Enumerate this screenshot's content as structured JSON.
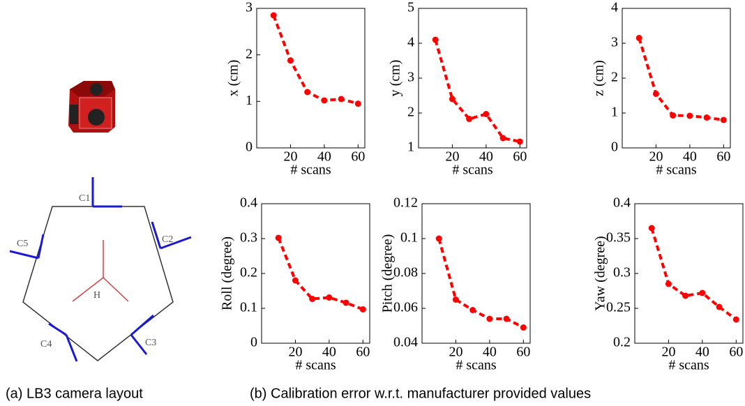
{
  "diagram": {
    "labels": [
      "C1",
      "C2",
      "C3",
      "C4",
      "C5",
      "H"
    ]
  },
  "captions": [
    "(a)  LB3 camera layout",
    "(b)  Calibration error w.r.t. manufacturer provided values"
  ],
  "chart_data": [
    {
      "type": "line",
      "ylabel": "x (cm)",
      "xlabel": "# scans",
      "x": [
        10,
        20,
        30,
        40,
        50,
        60
      ],
      "values": [
        2.85,
        1.88,
        1.2,
        1.02,
        1.05,
        0.95
      ],
      "color": "#ff0000",
      "xlim": [
        0,
        64
      ],
      "xticks": [
        20,
        40,
        60
      ],
      "ylim": [
        0,
        3
      ],
      "yticks": [
        0,
        1,
        2,
        3
      ]
    },
    {
      "type": "line",
      "ylabel": "y (cm)",
      "xlabel": "# scans",
      "x": [
        10,
        20,
        30,
        40,
        50,
        60
      ],
      "values": [
        4.1,
        2.4,
        1.83,
        1.97,
        1.28,
        1.18
      ],
      "color": "#ff0000",
      "xlim": [
        0,
        64
      ],
      "xticks": [
        20,
        40,
        60
      ],
      "ylim": [
        1,
        5
      ],
      "yticks": [
        1,
        2,
        3,
        4,
        5
      ]
    },
    {
      "type": "line",
      "ylabel": "z (cm)",
      "xlabel": "# scans",
      "x": [
        10,
        20,
        30,
        40,
        50,
        60
      ],
      "values": [
        3.15,
        1.55,
        0.93,
        0.92,
        0.87,
        0.8
      ],
      "color": "#ff0000",
      "xlim": [
        0,
        64
      ],
      "xticks": [
        20,
        40,
        60
      ],
      "ylim": [
        0,
        4
      ],
      "yticks": [
        0,
        1,
        2,
        3,
        4
      ]
    },
    {
      "type": "line",
      "ylabel": "Roll (degree)",
      "xlabel": "# scans",
      "x": [
        10,
        20,
        30,
        40,
        50,
        60
      ],
      "values": [
        0.302,
        0.18,
        0.127,
        0.131,
        0.116,
        0.097
      ],
      "color": "#ff0000",
      "xlim": [
        0,
        64
      ],
      "xticks": [
        20,
        40,
        60
      ],
      "ylim": [
        0,
        0.4
      ],
      "yticks": [
        0,
        0.1,
        0.2,
        0.3,
        0.4
      ]
    },
    {
      "type": "line",
      "ylabel": "Pitch (degree)",
      "xlabel": "# scans",
      "x": [
        10,
        20,
        30,
        40,
        50,
        60
      ],
      "values": [
        0.1,
        0.065,
        0.059,
        0.054,
        0.054,
        0.049
      ],
      "color": "#ff0000",
      "xlim": [
        0,
        64
      ],
      "xticks": [
        20,
        40,
        60
      ],
      "ylim": [
        0.04,
        0.12
      ],
      "yticks": [
        0.04,
        0.06,
        0.08,
        0.1,
        0.12
      ]
    },
    {
      "type": "line",
      "ylabel": "Yaw (degree)",
      "xlabel": "# scans",
      "x": [
        10,
        20,
        30,
        40,
        50,
        60
      ],
      "values": [
        0.365,
        0.285,
        0.268,
        0.272,
        0.252,
        0.234
      ],
      "color": "#ff0000",
      "xlim": [
        0,
        64
      ],
      "xticks": [
        20,
        40,
        60
      ],
      "ylim": [
        0.2,
        0.4
      ],
      "yticks": [
        0.2,
        0.25,
        0.3,
        0.35,
        0.4
      ]
    }
  ]
}
